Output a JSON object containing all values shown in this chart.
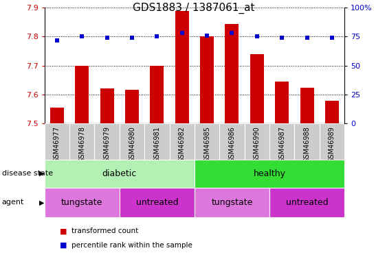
{
  "title": "GDS1883 / 1387061_at",
  "samples": [
    "GSM46977",
    "GSM46978",
    "GSM46979",
    "GSM46980",
    "GSM46981",
    "GSM46982",
    "GSM46985",
    "GSM46986",
    "GSM46990",
    "GSM46987",
    "GSM46988",
    "GSM46989"
  ],
  "bar_values": [
    7.555,
    7.7,
    7.62,
    7.615,
    7.7,
    7.888,
    7.8,
    7.843,
    7.74,
    7.645,
    7.623,
    7.578
  ],
  "percentile_values": [
    72,
    75,
    74,
    74,
    75,
    78,
    76,
    78,
    75,
    74,
    74,
    74
  ],
  "ymin": 7.5,
  "ymax": 7.9,
  "y2min": 0,
  "y2max": 100,
  "yticks": [
    7.5,
    7.6,
    7.7,
    7.8,
    7.9
  ],
  "y2ticks": [
    0,
    25,
    50,
    75,
    100
  ],
  "y2ticklabels": [
    "0",
    "25",
    "50",
    "75",
    "100%"
  ],
  "bar_color": "#cc0000",
  "dot_color": "#0000cc",
  "bar_bottom": 7.5,
  "disease_state_labels": [
    {
      "label": "diabetic",
      "start": 0,
      "end": 5,
      "color": "#b3f0b3"
    },
    {
      "label": "healthy",
      "start": 6,
      "end": 11,
      "color": "#33dd33"
    }
  ],
  "agent_labels": [
    {
      "label": "tungstate",
      "start": 0,
      "end": 2,
      "color": "#dd77dd"
    },
    {
      "label": "untreated",
      "start": 3,
      "end": 5,
      "color": "#cc33cc"
    },
    {
      "label": "tungstate",
      "start": 6,
      "end": 8,
      "color": "#dd77dd"
    },
    {
      "label": "untreated",
      "start": 9,
      "end": 11,
      "color": "#cc33cc"
    }
  ],
  "legend_items": [
    {
      "label": "transformed count",
      "color": "#cc0000"
    },
    {
      "label": "percentile rank within the sample",
      "color": "#0000cc"
    }
  ],
  "left_labels": [
    "disease state",
    "agent"
  ],
  "title_fontsize": 11,
  "tick_fontsize": 8,
  "sample_fontsize": 7,
  "axis_label_color_left": "#cc0000",
  "axis_label_color_right": "#0000cc",
  "xtick_bg_color": "#cccccc"
}
